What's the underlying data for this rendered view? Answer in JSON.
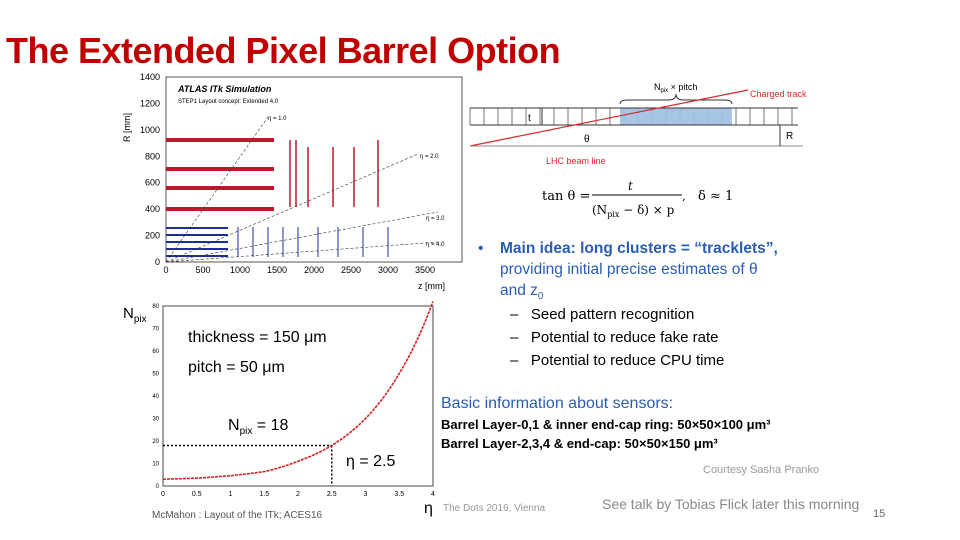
{
  "title": "The Extended Pixel Barrel Option",
  "layout_figure": {
    "header": "ATLAS ITk Simulation",
    "subheader": "STEP1 Layout concept: Extended 4.0",
    "ylabel": "R [mm]",
    "xlabel": "z [mm]",
    "y_ticks": [
      "1400",
      "1200",
      "1000",
      "800",
      "600",
      "400",
      "200",
      "0"
    ],
    "x_ticks": [
      "0",
      "500",
      "1000",
      "1500",
      "2000",
      "2500",
      "3000",
      "3500"
    ],
    "eta_labels": [
      "η = 1.0",
      "η = 2.0",
      "η = 3.0",
      "η = 4.0"
    ]
  },
  "track_figure": {
    "npix_pitch": "N",
    "npix_sub": "pix",
    "pitch_text": " × pitch",
    "charged_track": "Charged track",
    "t_label": "t",
    "theta_label": "θ",
    "r_label": "R",
    "beam_line": "LHC beam line",
    "formula_lhs": "tan θ =",
    "formula_num": "t",
    "formula_den_a": "(N",
    "formula_den_sub": "pix",
    "formula_den_b": " − δ) × p",
    "formula_comma": ",",
    "delta": "δ ≈ 1"
  },
  "npix_chart": {
    "ylabel": "N",
    "ylabel_sub": "pix",
    "xlabel": "η",
    "y_ticks": [
      "80",
      "70",
      "60",
      "50",
      "40",
      "30",
      "20",
      "10",
      "0"
    ],
    "x_ticks": [
      "0",
      "0.5",
      "1",
      "1.5",
      "2",
      "2.5",
      "3",
      "3.5",
      "4"
    ],
    "thickness": "thickness = 150 μm",
    "pitch": "pitch = 50 μm",
    "npix_marker_a": "N",
    "npix_marker_sub": "pix",
    "npix_marker_b": " = 18",
    "eta_marker": "η = 2.5"
  },
  "chart_data": {
    "type": "line",
    "title": "",
    "xlabel": "η",
    "ylabel": "Npix",
    "xlim": [
      0,
      4
    ],
    "ylim": [
      0,
      80
    ],
    "series": [
      {
        "x": [
          0,
          0.5,
          1,
          1.5,
          2,
          2.5,
          3,
          3.5,
          4
        ],
        "values": [
          3,
          3.5,
          4.6,
          6.4,
          11,
          18,
          30,
          50,
          82
        ]
      }
    ],
    "annotations": [
      "thickness = 150 μm",
      "pitch = 50 μm",
      "Npix = 18",
      "η = 2.5"
    ]
  },
  "bullets": {
    "main_bold": "Main idea: long clusters = “tracklets”,",
    "main_rest1": "providing initial precise estimates of θ",
    "main_rest2": "and z",
    "main_rest2_sub": "0",
    "sub1": "Seed pattern recognition",
    "sub2": "Potential to reduce fake rate",
    "sub3": "Potential to reduce CPU time",
    "dash": "–",
    "bullet_char": "•"
  },
  "sensors": {
    "heading": "Basic information about sensors:",
    "layer01": "Barrel Layer-0,1 & inner end-cap ring: 50×50×100 μm³",
    "layer234": "Barrel Layer-2,3,4 & end-cap: 50×50×150 μm³"
  },
  "courtesy": "Courtesy Sasha Pranko",
  "see_talk": "See talk by Tobias Flick later this morning",
  "page_number": "15",
  "footer": "McMahon : Layout of the ITk; ACES16",
  "conference": "The Dots 2016, Vienna",
  "colors": {
    "title": "#c00000",
    "accent_blue": "#2a5db0",
    "layer_red": "#c0182a",
    "layer_blue": "#1a2f9a",
    "curve_red": "#d81e1e"
  }
}
